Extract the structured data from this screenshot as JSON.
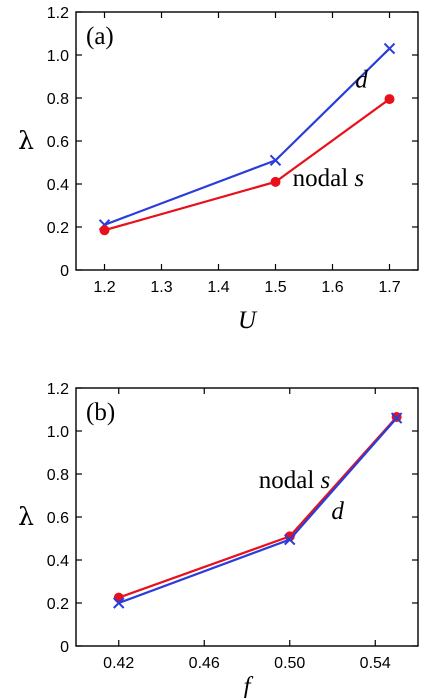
{
  "chart_data": [
    {
      "type": "line",
      "panel_label": "(a)",
      "xlabel": "U",
      "ylabel": "λ",
      "xlim": [
        1.15,
        1.75
      ],
      "ylim": [
        0,
        1.2
      ],
      "xticks": [
        1.2,
        1.3,
        1.4,
        1.5,
        1.6,
        1.7
      ],
      "xtick_labels": [
        "1.2",
        "1.3",
        "1.4",
        "1.5",
        "1.6",
        "1.7"
      ],
      "yticks": [
        0,
        0.2,
        0.4,
        0.6,
        0.8,
        1.0,
        1.2
      ],
      "ytick_labels": [
        "0",
        "0.2",
        "0.4",
        "0.6",
        "0.8",
        "1.0",
        "1.2"
      ],
      "series": [
        {
          "name": "d",
          "color": "#2a3ddb",
          "marker": "x",
          "x": [
            1.2,
            1.5,
            1.7
          ],
          "y": [
            0.21,
            0.51,
            1.03
          ]
        },
        {
          "name": "nodal s",
          "color": "#e8101a",
          "marker": "circle",
          "x": [
            1.2,
            1.5,
            1.7
          ],
          "y": [
            0.185,
            0.41,
            0.795
          ]
        }
      ],
      "annotations": [
        {
          "text": "d",
          "x": 1.64,
          "y": 0.85,
          "italic": true
        },
        {
          "text": "nodal ",
          "italic_suffix": "s",
          "x": 1.53,
          "y": 0.39
        }
      ],
      "grid": false
    },
    {
      "type": "line",
      "panel_label": "(b)",
      "xlabel": "f",
      "ylabel": "λ",
      "xlim": [
        0.4,
        0.56
      ],
      "ylim": [
        0,
        1.2
      ],
      "xticks": [
        0.42,
        0.46,
        0.5,
        0.54
      ],
      "xtick_labels": [
        "0.42",
        "0.46",
        "0.50",
        "0.54"
      ],
      "yticks": [
        0,
        0.2,
        0.4,
        0.6,
        0.8,
        1.0,
        1.2
      ],
      "ytick_labels": [
        "0",
        "0.2",
        "0.4",
        "0.6",
        "0.8",
        "1.0",
        "1.2"
      ],
      "series": [
        {
          "name": "nodal s",
          "color": "#e8101a",
          "marker": "circle",
          "x": [
            0.42,
            0.5,
            0.55
          ],
          "y": [
            0.225,
            0.51,
            1.065
          ]
        },
        {
          "name": "d",
          "color": "#2a3ddb",
          "marker": "x",
          "x": [
            0.42,
            0.5,
            0.55
          ],
          "y": [
            0.2,
            0.495,
            1.06
          ]
        }
      ],
      "annotations": [
        {
          "text": "nodal ",
          "italic_suffix": "s",
          "x": 0.4855,
          "y": 0.735
        },
        {
          "text": "d",
          "x": 0.5195,
          "y": 0.59,
          "italic": true
        }
      ],
      "grid": false
    }
  ]
}
